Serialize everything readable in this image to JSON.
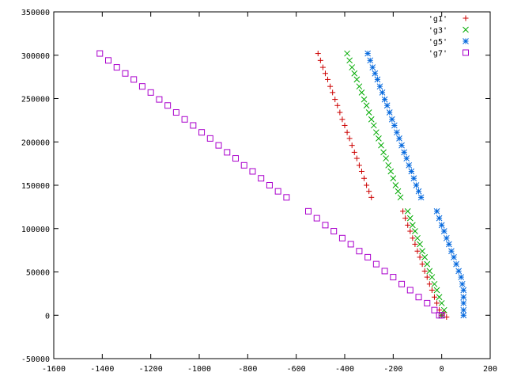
{
  "chart_data": {
    "type": "scatter",
    "xlim": [
      -1600,
      200
    ],
    "ylim": [
      -50000,
      350000
    ],
    "x_ticks": [
      -1600,
      -1400,
      -1200,
      -1000,
      -800,
      -600,
      -400,
      -200,
      0,
      200
    ],
    "y_ticks": [
      -50000,
      0,
      50000,
      100000,
      150000,
      200000,
      250000,
      300000,
      350000
    ],
    "x_tick_labels": [
      "-1600",
      "-1400",
      "-1200",
      "-1000",
      "-800",
      "-600",
      "-400",
      "-200",
      "0",
      "200"
    ],
    "y_tick_labels": [
      "-50000",
      "0",
      "50000",
      "100000",
      "150000",
      "200000",
      "250000",
      "300000",
      "350000"
    ],
    "grid": false,
    "legend_position": "top-right",
    "series": [
      {
        "name": "'g1'",
        "marker": "plus",
        "color": "#cc0000",
        "points": [
          [
            -510,
            302000
          ],
          [
            -500,
            294000
          ],
          [
            -490,
            286000
          ],
          [
            -480,
            279000
          ],
          [
            -470,
            272000
          ],
          [
            -460,
            264000
          ],
          [
            -450,
            257000
          ],
          [
            -440,
            249000
          ],
          [
            -430,
            242000
          ],
          [
            -420,
            234000
          ],
          [
            -410,
            226000
          ],
          [
            -400,
            219000
          ],
          [
            -390,
            211000
          ],
          [
            -380,
            204000
          ],
          [
            -370,
            196000
          ],
          [
            -360,
            188000
          ],
          [
            -350,
            181000
          ],
          [
            -340,
            173000
          ],
          [
            -330,
            166000
          ],
          [
            -320,
            158000
          ],
          [
            -310,
            150000
          ],
          [
            -300,
            143000
          ],
          [
            -290,
            136000
          ],
          [
            -160,
            120000
          ],
          [
            -150,
            112000
          ],
          [
            -140,
            104000
          ],
          [
            -130,
            97000
          ],
          [
            -120,
            89000
          ],
          [
            -110,
            82000
          ],
          [
            -100,
            74000
          ],
          [
            -90,
            67000
          ],
          [
            -80,
            59000
          ],
          [
            -70,
            51000
          ],
          [
            -60,
            44000
          ],
          [
            -50,
            36000
          ],
          [
            -40,
            29000
          ],
          [
            -30,
            21000
          ],
          [
            -20,
            14000
          ],
          [
            -10,
            6000
          ],
          [
            0,
            0
          ],
          [
            10,
            3000
          ],
          [
            20,
            -2000
          ]
        ]
      },
      {
        "name": "'g3'",
        "marker": "cross",
        "color": "#00aa00",
        "points": [
          [
            -390,
            302000
          ],
          [
            -380,
            294000
          ],
          [
            -370,
            286000
          ],
          [
            -360,
            279000
          ],
          [
            -350,
            272000
          ],
          [
            -340,
            264000
          ],
          [
            -330,
            257000
          ],
          [
            -320,
            249000
          ],
          [
            -310,
            242000
          ],
          [
            -300,
            234000
          ],
          [
            -290,
            226000
          ],
          [
            -280,
            219000
          ],
          [
            -270,
            211000
          ],
          [
            -260,
            204000
          ],
          [
            -250,
            196000
          ],
          [
            -240,
            188000
          ],
          [
            -230,
            181000
          ],
          [
            -220,
            173000
          ],
          [
            -210,
            166000
          ],
          [
            -200,
            158000
          ],
          [
            -190,
            150000
          ],
          [
            -180,
            143000
          ],
          [
            -170,
            136000
          ],
          [
            -140,
            120000
          ],
          [
            -130,
            112000
          ],
          [
            -120,
            104000
          ],
          [
            -110,
            97000
          ],
          [
            -100,
            89000
          ],
          [
            -90,
            82000
          ],
          [
            -80,
            74000
          ],
          [
            -70,
            67000
          ],
          [
            -60,
            59000
          ],
          [
            -50,
            51000
          ],
          [
            -40,
            44000
          ],
          [
            -30,
            36000
          ],
          [
            -20,
            29000
          ],
          [
            -10,
            21000
          ],
          [
            0,
            14000
          ],
          [
            10,
            6000
          ],
          [
            0,
            0
          ]
        ]
      },
      {
        "name": "'g5'",
        "marker": "star",
        "color": "#0066dd",
        "points": [
          [
            -305,
            302000
          ],
          [
            -295,
            294000
          ],
          [
            -285,
            286000
          ],
          [
            -275,
            279000
          ],
          [
            -265,
            272000
          ],
          [
            -255,
            264000
          ],
          [
            -245,
            257000
          ],
          [
            -235,
            249000
          ],
          [
            -225,
            242000
          ],
          [
            -215,
            234000
          ],
          [
            -205,
            226000
          ],
          [
            -195,
            219000
          ],
          [
            -185,
            211000
          ],
          [
            -175,
            204000
          ],
          [
            -165,
            196000
          ],
          [
            -155,
            188000
          ],
          [
            -145,
            181000
          ],
          [
            -135,
            173000
          ],
          [
            -125,
            166000
          ],
          [
            -115,
            158000
          ],
          [
            -105,
            150000
          ],
          [
            -95,
            143000
          ],
          [
            -85,
            136000
          ],
          [
            -20,
            120000
          ],
          [
            -10,
            112000
          ],
          [
            0,
            104000
          ],
          [
            10,
            97000
          ],
          [
            20,
            89000
          ],
          [
            30,
            82000
          ],
          [
            40,
            74000
          ],
          [
            50,
            67000
          ],
          [
            60,
            59000
          ],
          [
            70,
            51000
          ],
          [
            80,
            44000
          ],
          [
            85,
            36000
          ],
          [
            90,
            29000
          ],
          [
            90,
            21000
          ],
          [
            90,
            14000
          ],
          [
            90,
            6000
          ],
          [
            90,
            0
          ]
        ]
      },
      {
        "name": "'g7'",
        "marker": "square",
        "color": "#aa00cc",
        "points": [
          [
            -1410,
            302000
          ],
          [
            -1375,
            294000
          ],
          [
            -1340,
            286000
          ],
          [
            -1305,
            279000
          ],
          [
            -1270,
            272000
          ],
          [
            -1235,
            264000
          ],
          [
            -1200,
            257000
          ],
          [
            -1165,
            249000
          ],
          [
            -1130,
            242000
          ],
          [
            -1095,
            234000
          ],
          [
            -1060,
            226000
          ],
          [
            -1025,
            219000
          ],
          [
            -990,
            211000
          ],
          [
            -955,
            204000
          ],
          [
            -920,
            196000
          ],
          [
            -885,
            188000
          ],
          [
            -850,
            181000
          ],
          [
            -815,
            173000
          ],
          [
            -780,
            166000
          ],
          [
            -745,
            158000
          ],
          [
            -710,
            150000
          ],
          [
            -675,
            143000
          ],
          [
            -640,
            136000
          ],
          [
            -550,
            120000
          ],
          [
            -515,
            112000
          ],
          [
            -480,
            104000
          ],
          [
            -445,
            97000
          ],
          [
            -410,
            89000
          ],
          [
            -375,
            82000
          ],
          [
            -340,
            74000
          ],
          [
            -305,
            67000
          ],
          [
            -270,
            59000
          ],
          [
            -235,
            51000
          ],
          [
            -200,
            44000
          ],
          [
            -165,
            36000
          ],
          [
            -130,
            29000
          ],
          [
            -95,
            21000
          ],
          [
            -60,
            14000
          ],
          [
            -30,
            6000
          ],
          [
            -10,
            0
          ],
          [
            0,
            0
          ]
        ]
      }
    ]
  }
}
